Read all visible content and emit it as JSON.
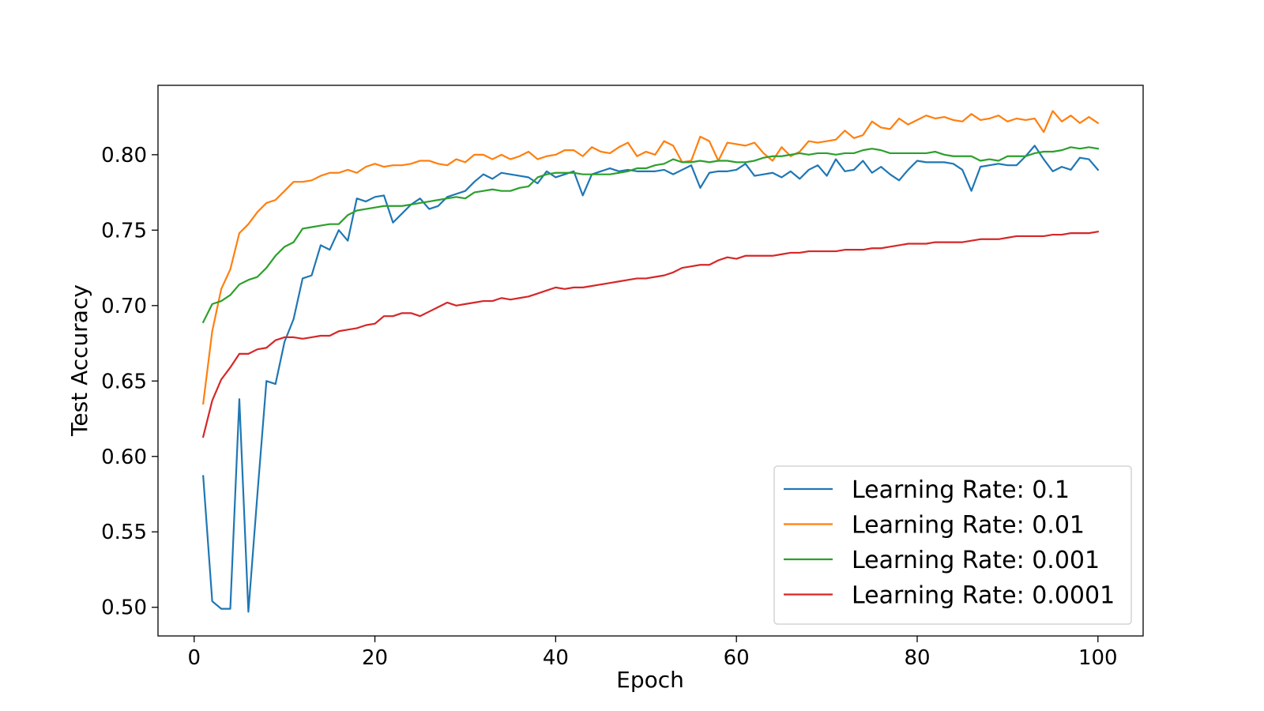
{
  "chart_data": {
    "type": "line",
    "xlabel": "Epoch",
    "ylabel": "Test Accuracy",
    "xlim": [
      -4,
      105
    ],
    "ylim": [
      0.481,
      0.846
    ],
    "x_ticks": [
      0,
      20,
      40,
      60,
      80,
      100
    ],
    "x_tick_labels": [
      "0",
      "20",
      "40",
      "60",
      "80",
      "100"
    ],
    "y_ticks": [
      0.5,
      0.55,
      0.6,
      0.65,
      0.7,
      0.75,
      0.8
    ],
    "y_tick_labels": [
      "0.50",
      "0.55",
      "0.60",
      "0.65",
      "0.70",
      "0.75",
      "0.80"
    ],
    "grid": false,
    "legend_position": "lower-right",
    "x": [
      1,
      2,
      3,
      4,
      5,
      6,
      7,
      8,
      9,
      10,
      11,
      12,
      13,
      14,
      15,
      16,
      17,
      18,
      19,
      20,
      21,
      22,
      23,
      24,
      25,
      26,
      27,
      28,
      29,
      30,
      31,
      32,
      33,
      34,
      35,
      36,
      37,
      38,
      39,
      40,
      41,
      42,
      43,
      44,
      45,
      46,
      47,
      48,
      49,
      50,
      51,
      52,
      53,
      54,
      55,
      56,
      57,
      58,
      59,
      60,
      61,
      62,
      63,
      64,
      65,
      66,
      67,
      68,
      69,
      70,
      71,
      72,
      73,
      74,
      75,
      76,
      77,
      78,
      79,
      80,
      81,
      82,
      83,
      84,
      85,
      86,
      87,
      88,
      89,
      90,
      91,
      92,
      93,
      94,
      95,
      96,
      97,
      98,
      99,
      100
    ],
    "series": [
      {
        "name": "Learning Rate: 0.1",
        "color": "#1f77b4",
        "values": [
          0.587,
          0.504,
          0.499,
          0.499,
          0.638,
          0.497,
          0.575,
          0.65,
          0.648,
          0.676,
          0.691,
          0.718,
          0.72,
          0.74,
          0.737,
          0.75,
          0.743,
          0.771,
          0.769,
          0.772,
          0.773,
          0.755,
          0.761,
          0.767,
          0.771,
          0.764,
          0.766,
          0.772,
          0.774,
          0.776,
          0.782,
          0.787,
          0.784,
          0.788,
          0.787,
          0.786,
          0.785,
          0.781,
          0.789,
          0.785,
          0.787,
          0.789,
          0.773,
          0.787,
          0.789,
          0.791,
          0.789,
          0.79,
          0.789,
          0.789,
          0.789,
          0.79,
          0.787,
          0.79,
          0.793,
          0.778,
          0.788,
          0.789,
          0.789,
          0.79,
          0.794,
          0.786,
          0.787,
          0.788,
          0.785,
          0.789,
          0.784,
          0.79,
          0.793,
          0.786,
          0.797,
          0.789,
          0.79,
          0.796,
          0.788,
          0.792,
          0.787,
          0.783,
          0.79,
          0.796,
          0.795,
          0.795,
          0.795,
          0.794,
          0.79,
          0.776,
          0.792,
          0.793,
          0.794,
          0.793,
          0.793,
          0.799,
          0.806,
          0.797,
          0.789,
          0.792,
          0.79,
          0.798,
          0.797,
          0.79
        ]
      },
      {
        "name": "Learning Rate: 0.01",
        "color": "#ff7f0e",
        "values": [
          0.635,
          0.683,
          0.711,
          0.724,
          0.748,
          0.754,
          0.762,
          0.768,
          0.77,
          0.776,
          0.782,
          0.782,
          0.783,
          0.786,
          0.788,
          0.788,
          0.79,
          0.788,
          0.792,
          0.794,
          0.792,
          0.793,
          0.793,
          0.794,
          0.796,
          0.796,
          0.794,
          0.793,
          0.797,
          0.795,
          0.8,
          0.8,
          0.797,
          0.8,
          0.797,
          0.799,
          0.802,
          0.797,
          0.799,
          0.8,
          0.803,
          0.803,
          0.799,
          0.805,
          0.802,
          0.801,
          0.805,
          0.808,
          0.799,
          0.802,
          0.8,
          0.809,
          0.806,
          0.795,
          0.796,
          0.812,
          0.809,
          0.796,
          0.808,
          0.807,
          0.806,
          0.808,
          0.801,
          0.796,
          0.805,
          0.799,
          0.802,
          0.809,
          0.808,
          0.809,
          0.81,
          0.816,
          0.811,
          0.813,
          0.822,
          0.818,
          0.817,
          0.824,
          0.82,
          0.823,
          0.826,
          0.824,
          0.825,
          0.823,
          0.822,
          0.827,
          0.823,
          0.824,
          0.826,
          0.822,
          0.824,
          0.823,
          0.824,
          0.815,
          0.829,
          0.822,
          0.826,
          0.821,
          0.825,
          0.821
        ]
      },
      {
        "name": "Learning Rate: 0.001",
        "color": "#2ca02c",
        "values": [
          0.689,
          0.701,
          0.703,
          0.707,
          0.714,
          0.717,
          0.719,
          0.725,
          0.733,
          0.739,
          0.742,
          0.751,
          0.752,
          0.753,
          0.754,
          0.754,
          0.76,
          0.763,
          0.764,
          0.765,
          0.766,
          0.766,
          0.766,
          0.767,
          0.768,
          0.769,
          0.77,
          0.771,
          0.772,
          0.771,
          0.775,
          0.776,
          0.777,
          0.776,
          0.776,
          0.778,
          0.779,
          0.785,
          0.787,
          0.788,
          0.788,
          0.788,
          0.787,
          0.787,
          0.787,
          0.787,
          0.788,
          0.789,
          0.791,
          0.791,
          0.793,
          0.794,
          0.797,
          0.795,
          0.795,
          0.796,
          0.795,
          0.796,
          0.796,
          0.795,
          0.795,
          0.796,
          0.798,
          0.799,
          0.799,
          0.8,
          0.801,
          0.8,
          0.801,
          0.801,
          0.8,
          0.801,
          0.801,
          0.803,
          0.804,
          0.803,
          0.801,
          0.801,
          0.801,
          0.801,
          0.801,
          0.802,
          0.8,
          0.799,
          0.799,
          0.799,
          0.796,
          0.797,
          0.796,
          0.799,
          0.799,
          0.799,
          0.801,
          0.802,
          0.802,
          0.803,
          0.805,
          0.804,
          0.805,
          0.804
        ]
      },
      {
        "name": "Learning Rate: 0.0001",
        "color": "#d62728",
        "values": [
          0.613,
          0.637,
          0.651,
          0.659,
          0.668,
          0.668,
          0.671,
          0.672,
          0.677,
          0.679,
          0.679,
          0.678,
          0.679,
          0.68,
          0.68,
          0.683,
          0.684,
          0.685,
          0.687,
          0.688,
          0.693,
          0.693,
          0.695,
          0.695,
          0.693,
          0.696,
          0.699,
          0.702,
          0.7,
          0.701,
          0.702,
          0.703,
          0.703,
          0.705,
          0.704,
          0.705,
          0.706,
          0.708,
          0.71,
          0.712,
          0.711,
          0.712,
          0.712,
          0.713,
          0.714,
          0.715,
          0.716,
          0.717,
          0.718,
          0.718,
          0.719,
          0.72,
          0.722,
          0.725,
          0.726,
          0.727,
          0.727,
          0.73,
          0.732,
          0.731,
          0.733,
          0.733,
          0.733,
          0.733,
          0.734,
          0.735,
          0.735,
          0.736,
          0.736,
          0.736,
          0.736,
          0.737,
          0.737,
          0.737,
          0.738,
          0.738,
          0.739,
          0.74,
          0.741,
          0.741,
          0.741,
          0.742,
          0.742,
          0.742,
          0.742,
          0.743,
          0.744,
          0.744,
          0.744,
          0.745,
          0.746,
          0.746,
          0.746,
          0.746,
          0.747,
          0.747,
          0.748,
          0.748,
          0.748,
          0.749
        ]
      }
    ]
  }
}
